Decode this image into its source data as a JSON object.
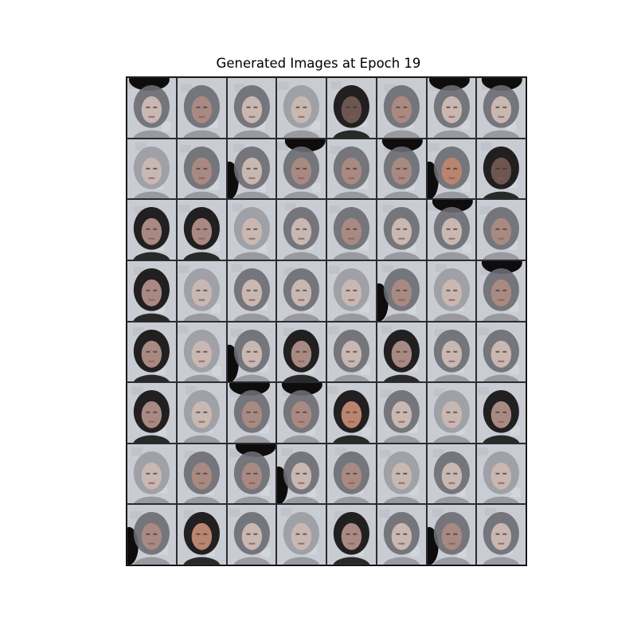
{
  "figure": {
    "title": "Generated Images at Epoch 19"
  },
  "grid": {
    "rows": 8,
    "cols": 8,
    "tiles": [
      {
        "hair": "dark-top",
        "tone": "pale"
      },
      {
        "hair": "medium",
        "tone": "medium"
      },
      {
        "hair": "medium",
        "tone": "pale"
      },
      {
        "hair": "light",
        "tone": "pale"
      },
      {
        "hair": "dark",
        "tone": "dark"
      },
      {
        "hair": "medium",
        "tone": "medium"
      },
      {
        "hair": "dark-top",
        "tone": "pale"
      },
      {
        "hair": "dark-top",
        "tone": "pale"
      },
      {
        "hair": "light",
        "tone": "pale"
      },
      {
        "hair": "medium",
        "tone": "medium"
      },
      {
        "hair": "dark-left",
        "tone": "pale"
      },
      {
        "hair": "dark-top",
        "tone": "medium"
      },
      {
        "hair": "medium",
        "tone": "medium"
      },
      {
        "hair": "dark-top",
        "tone": "medium"
      },
      {
        "hair": "dark-left",
        "tone": "warm"
      },
      {
        "hair": "dark",
        "tone": "dark"
      },
      {
        "hair": "dark",
        "tone": "medium"
      },
      {
        "hair": "dark",
        "tone": "medium"
      },
      {
        "hair": "light",
        "tone": "pale"
      },
      {
        "hair": "medium",
        "tone": "pale"
      },
      {
        "hair": "medium",
        "tone": "medium"
      },
      {
        "hair": "medium",
        "tone": "pale"
      },
      {
        "hair": "dark-top",
        "tone": "pale"
      },
      {
        "hair": "medium",
        "tone": "medium"
      },
      {
        "hair": "dark",
        "tone": "medium"
      },
      {
        "hair": "light",
        "tone": "pale"
      },
      {
        "hair": "medium",
        "tone": "pale"
      },
      {
        "hair": "medium",
        "tone": "pale"
      },
      {
        "hair": "light",
        "tone": "pale"
      },
      {
        "hair": "dark-left",
        "tone": "medium"
      },
      {
        "hair": "light",
        "tone": "pale"
      },
      {
        "hair": "dark-top",
        "tone": "medium"
      },
      {
        "hair": "dark",
        "tone": "medium"
      },
      {
        "hair": "light",
        "tone": "pale"
      },
      {
        "hair": "dark-left",
        "tone": "pale"
      },
      {
        "hair": "dark",
        "tone": "medium"
      },
      {
        "hair": "medium",
        "tone": "pale"
      },
      {
        "hair": "dark",
        "tone": "medium"
      },
      {
        "hair": "medium",
        "tone": "pale"
      },
      {
        "hair": "medium",
        "tone": "pale"
      },
      {
        "hair": "dark",
        "tone": "medium"
      },
      {
        "hair": "light",
        "tone": "pale"
      },
      {
        "hair": "dark-top",
        "tone": "medium"
      },
      {
        "hair": "dark-top",
        "tone": "medium"
      },
      {
        "hair": "dark",
        "tone": "warm"
      },
      {
        "hair": "medium",
        "tone": "pale"
      },
      {
        "hair": "light",
        "tone": "pale"
      },
      {
        "hair": "dark",
        "tone": "medium"
      },
      {
        "hair": "light",
        "tone": "pale"
      },
      {
        "hair": "medium",
        "tone": "medium"
      },
      {
        "hair": "dark-top",
        "tone": "medium"
      },
      {
        "hair": "dark-left",
        "tone": "pale"
      },
      {
        "hair": "medium",
        "tone": "medium"
      },
      {
        "hair": "light",
        "tone": "pale"
      },
      {
        "hair": "medium",
        "tone": "pale"
      },
      {
        "hair": "light",
        "tone": "pale"
      },
      {
        "hair": "dark-left",
        "tone": "medium"
      },
      {
        "hair": "dark",
        "tone": "warm"
      },
      {
        "hair": "medium",
        "tone": "pale"
      },
      {
        "hair": "light",
        "tone": "pale"
      },
      {
        "hair": "dark",
        "tone": "medium"
      },
      {
        "hair": "medium",
        "tone": "pale"
      },
      {
        "hair": "dark-left",
        "tone": "medium"
      },
      {
        "hair": "medium",
        "tone": "pale"
      }
    ]
  },
  "colors": {
    "background": "#c9ccd2",
    "hair_dark": "#0e0c0c",
    "hair_medium": "#6b6c72",
    "hair_light": "#9a9ca2",
    "skin_pale": "#c9b8b2",
    "skin_medium": "#a88a82",
    "skin_warm": "#b98470",
    "skin_dark": "#6e5650"
  }
}
